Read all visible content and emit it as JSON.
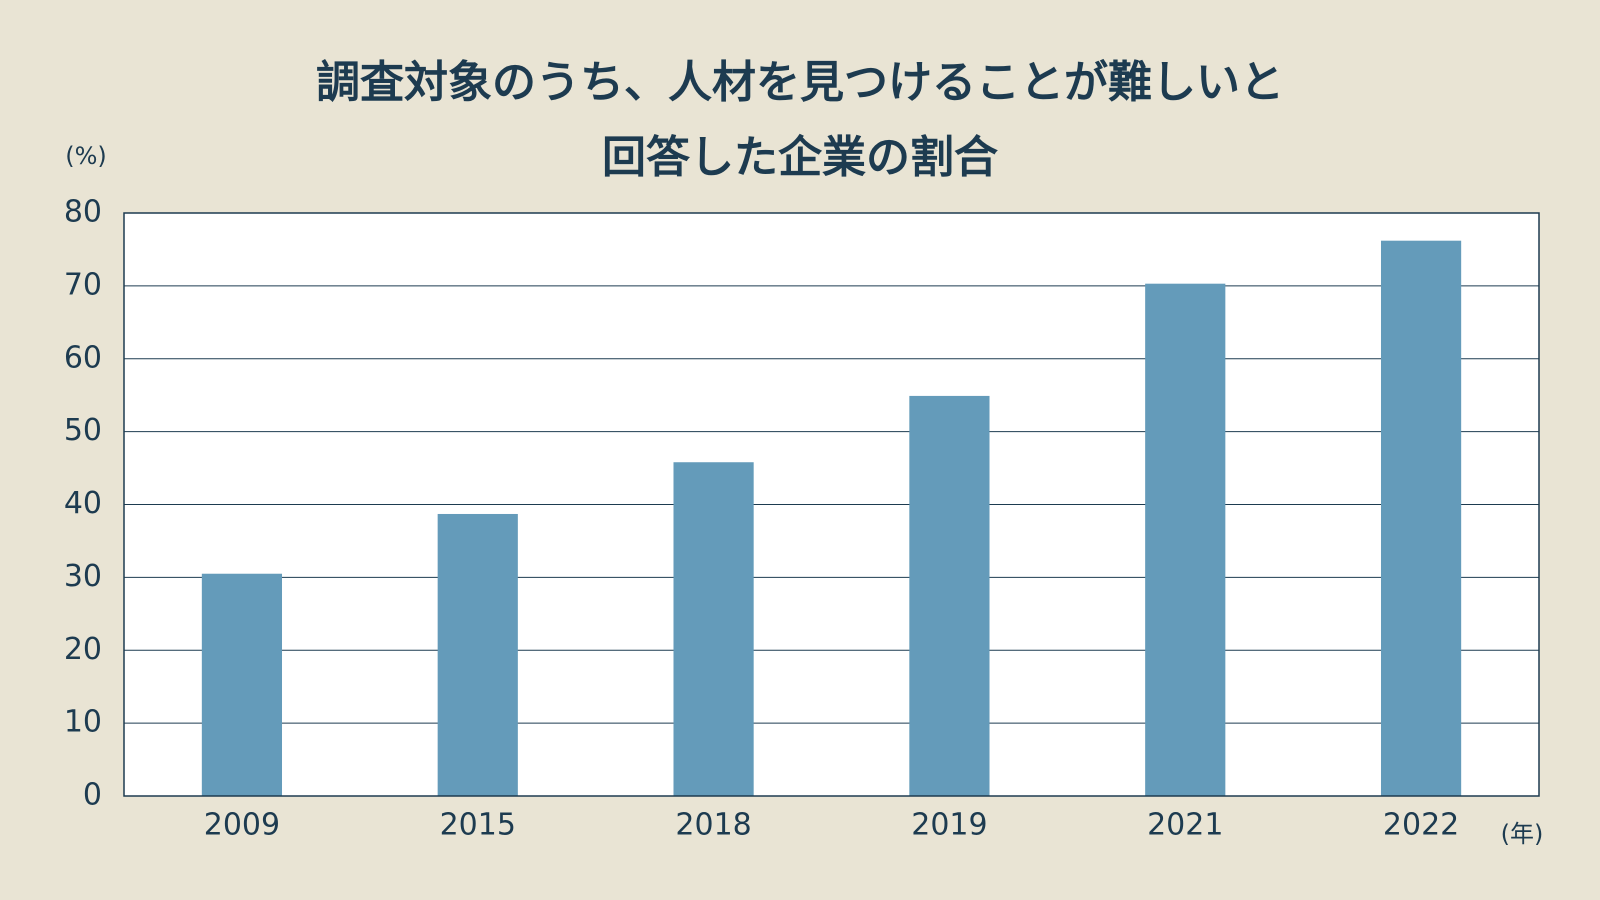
{
  "chart_data": {
    "type": "bar",
    "title": [
      "調査対象のうち、人材を見つけることが難しいと",
      "回答した企業の割合"
    ],
    "y_unit": "(%)",
    "x_unit": "(年)",
    "categories": [
      "2009",
      "2015",
      "2018",
      "2019",
      "2021",
      "2022"
    ],
    "values": [
      30.5,
      38.7,
      45.8,
      54.9,
      70.3,
      76.2
    ],
    "color": "#649bba",
    "ylim": [
      0,
      80
    ],
    "yticks": [
      0,
      10,
      20,
      30,
      40,
      50,
      60,
      70,
      80
    ],
    "grid": true
  }
}
